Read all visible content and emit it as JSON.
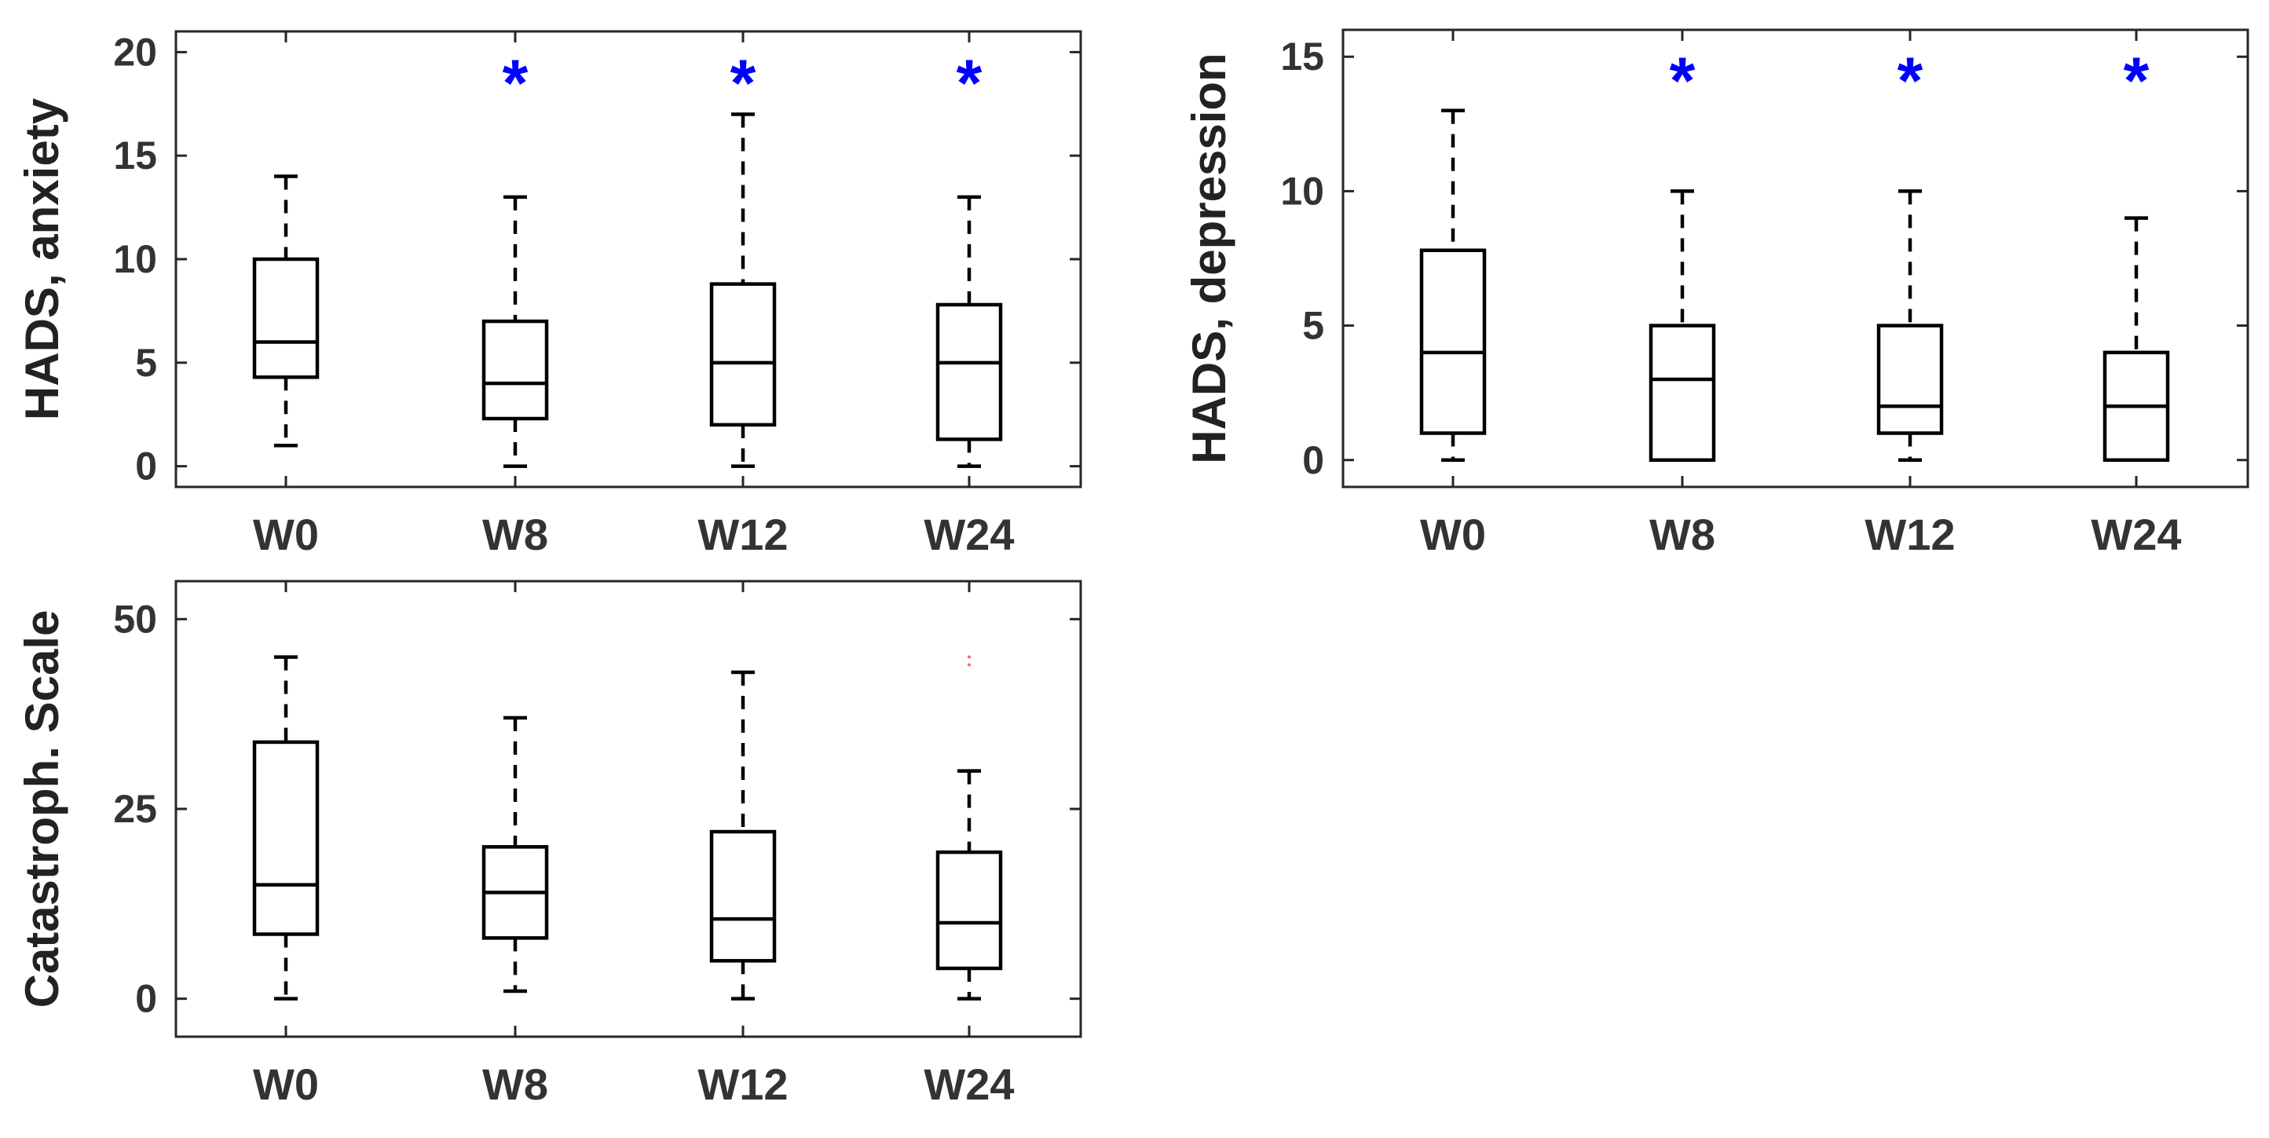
{
  "chart_data": [
    {
      "type": "boxplot",
      "ylabel": "HADS, anxiety",
      "ylim": [
        -1,
        21
      ],
      "yticks": [
        0,
        5,
        10,
        15,
        20
      ],
      "categories": [
        "W0",
        "W8",
        "W12",
        "W24"
      ],
      "boxes": [
        {
          "category": "W0",
          "whisker_low": 1,
          "q1": 4.3,
          "median": 6,
          "q3": 10,
          "whisker_high": 14
        },
        {
          "category": "W8",
          "whisker_low": 0,
          "q1": 2.3,
          "median": 4,
          "q3": 7,
          "whisker_high": 13
        },
        {
          "category": "W12",
          "whisker_low": 0,
          "q1": 2,
          "median": 5,
          "q3": 8.8,
          "whisker_high": 17
        },
        {
          "category": "W24",
          "whisker_low": 0,
          "q1": 1.3,
          "median": 5,
          "q3": 7.8,
          "whisker_high": 13
        }
      ],
      "significance": [
        {
          "category": "W8",
          "symbol": "*",
          "y": 19
        },
        {
          "category": "W12",
          "symbol": "*",
          "y": 19
        },
        {
          "category": "W24",
          "symbol": "*",
          "y": 19
        }
      ],
      "outliers": [],
      "colors": {
        "box": "#000000",
        "significance": "#0000ff",
        "text": "#333333"
      }
    },
    {
      "type": "boxplot",
      "ylabel": "HADS, depression",
      "ylim": [
        -1,
        16
      ],
      "yticks": [
        0,
        5,
        10,
        15
      ],
      "categories": [
        "W0",
        "W8",
        "W12",
        "W24"
      ],
      "boxes": [
        {
          "category": "W0",
          "whisker_low": 0,
          "q1": 1,
          "median": 4,
          "q3": 7.8,
          "whisker_high": 13
        },
        {
          "category": "W8",
          "whisker_low": 0,
          "q1": 0,
          "median": 3,
          "q3": 5,
          "whisker_high": 10
        },
        {
          "category": "W12",
          "whisker_low": 0,
          "q1": 1,
          "median": 2,
          "q3": 5,
          "whisker_high": 10
        },
        {
          "category": "W24",
          "whisker_low": 0,
          "q1": 0,
          "median": 2,
          "q3": 4,
          "whisker_high": 9
        }
      ],
      "significance": [
        {
          "category": "W8",
          "symbol": "*",
          "y": 14.5
        },
        {
          "category": "W12",
          "symbol": "*",
          "y": 14.5
        },
        {
          "category": "W24",
          "symbol": "*",
          "y": 14.5
        }
      ],
      "outliers": [],
      "colors": {
        "box": "#000000",
        "significance": "#0000ff",
        "text": "#333333"
      }
    },
    {
      "type": "boxplot",
      "ylabel": "Catastroph. Scale",
      "ylim": [
        -5,
        55
      ],
      "yticks": [
        0,
        25,
        50
      ],
      "categories": [
        "W0",
        "W8",
        "W12",
        "W24"
      ],
      "boxes": [
        {
          "category": "W0",
          "whisker_low": 0,
          "q1": 8.5,
          "median": 15,
          "q3": 33.8,
          "whisker_high": 45
        },
        {
          "category": "W8",
          "whisker_low": 1,
          "q1": 8,
          "median": 14,
          "q3": 20,
          "whisker_high": 37
        },
        {
          "category": "W12",
          "whisker_low": 0,
          "q1": 5,
          "median": 10.5,
          "q3": 22,
          "whisker_high": 43
        },
        {
          "category": "W24",
          "whisker_low": 0,
          "q1": 4,
          "median": 10,
          "q3": 19.3,
          "whisker_high": 30
        }
      ],
      "significance": [],
      "outliers": [
        {
          "category": "W24",
          "y": 44.5
        }
      ],
      "colors": {
        "box": "#000000",
        "significance": "#0000ff",
        "outlier": "#ff6666",
        "text": "#333333"
      }
    }
  ]
}
